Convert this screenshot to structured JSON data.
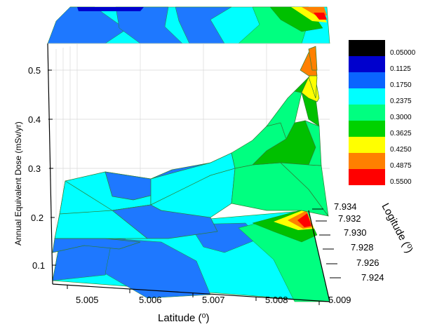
{
  "chart_data": {
    "type": "surface3d",
    "title": "",
    "xlabel": "Latitude (⁰)",
    "ylabel": "Logitude (⁰)",
    "zlabel": "Annual Equivalent Dose (mSv/yr)",
    "x_ticks": [
      "5.005",
      "5.006",
      "5.007",
      "5.008",
      "5.009"
    ],
    "y_ticks": [
      "7.924",
      "7.926",
      "7.928",
      "7.930",
      "7.932",
      "7.934"
    ],
    "z_ticks": [
      "0.1",
      "0.2",
      "0.3",
      "0.4",
      "0.5"
    ],
    "colorbar": [
      {
        "label": "0.05000",
        "color": "#000000"
      },
      {
        "label": "0.1125",
        "color": "#0000cd"
      },
      {
        "label": "0.1750",
        "color": "#0a64ff"
      },
      {
        "label": "0.2375",
        "color": "#00ffff"
      },
      {
        "label": "0.3000",
        "color": "#00ff80"
      },
      {
        "label": "0.3625",
        "color": "#00d200"
      },
      {
        "label": "0.4250",
        "color": "#ffff00"
      },
      {
        "label": "0.4875",
        "color": "#ff8000"
      },
      {
        "label": "0.5500",
        "color": "#ff0000"
      }
    ],
    "colorbar_range": [
      0.05,
      0.55
    ],
    "grid": true,
    "legend_position": "right"
  }
}
